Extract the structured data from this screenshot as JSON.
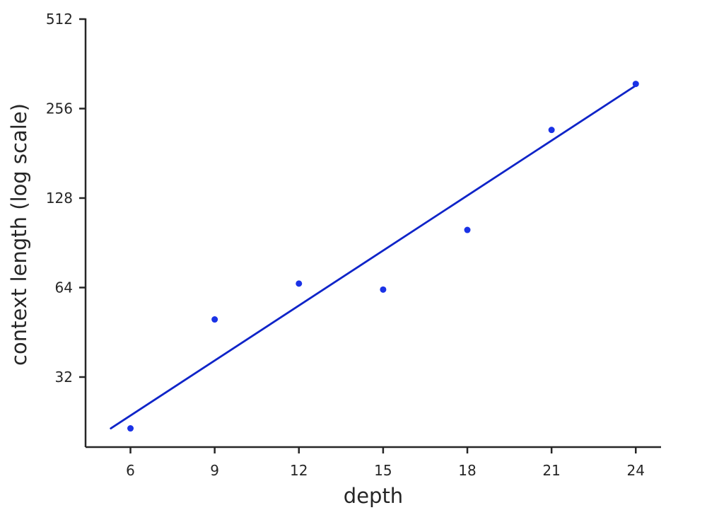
{
  "chart_data": {
    "type": "scatter",
    "xlabel": "depth",
    "ylabel": "context length (log scale)",
    "x_ticks": [
      6,
      9,
      12,
      15,
      18,
      21,
      24
    ],
    "y_ticks": [
      32,
      64,
      128,
      256,
      512
    ],
    "y_tick_labels": [
      "32",
      "64",
      "128",
      "256",
      "512"
    ],
    "xlim": [
      4.4,
      24.9
    ],
    "ylim": [
      18.6,
      512
    ],
    "y_scale": "log2",
    "grid": false,
    "series": [
      {
        "points": [
          {
            "x": 6,
            "y": 21.5
          },
          {
            "x": 9,
            "y": 50
          },
          {
            "x": 12,
            "y": 66
          },
          {
            "x": 15,
            "y": 63
          },
          {
            "x": 18,
            "y": 100
          },
          {
            "x": 21,
            "y": 217
          },
          {
            "x": 24,
            "y": 310
          }
        ],
        "color": "#1a32e6"
      }
    ],
    "fit_line": {
      "x_start": 5.3,
      "y_start": 21.5,
      "x_end": 24,
      "y_end": 306,
      "color": "#0f24c8"
    }
  }
}
